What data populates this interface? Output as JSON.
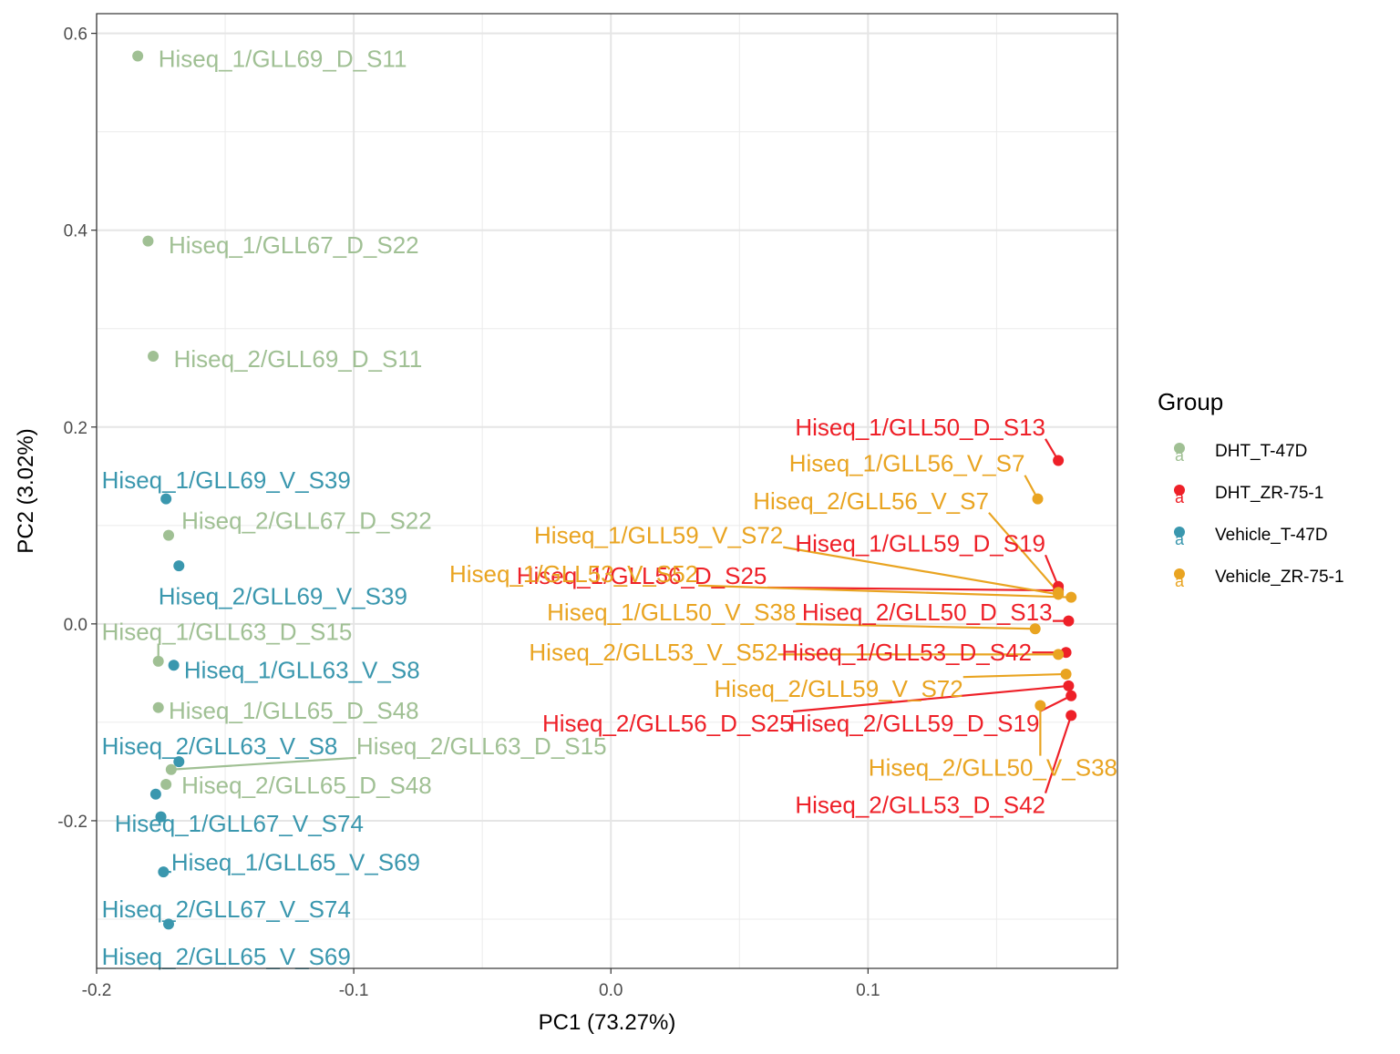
{
  "chart_data": {
    "type": "scatter",
    "title": "",
    "xlabel": "PC1 (73.27%)",
    "ylabel": "PC2 (3.02%)",
    "xlim": [
      -0.2,
      0.197
    ],
    "ylim": [
      -0.35,
      0.62
    ],
    "x_ticks": [
      -0.2,
      -0.1,
      0.0,
      0.1
    ],
    "x_tick_labels": [
      "-0.2",
      "-0.1",
      "0.0",
      "0.1"
    ],
    "y_ticks": [
      -0.2,
      0.0,
      0.2,
      0.4,
      0.6
    ],
    "y_tick_labels": [
      "-0.2",
      "0.0",
      "0.2",
      "0.4",
      "0.6"
    ],
    "grid": true,
    "legend": {
      "title": "Group",
      "placement": "right",
      "glyph": "a",
      "entries": [
        {
          "name": "DHT_T-47D",
          "color": "#a0c094"
        },
        {
          "name": "DHT_ZR-75-1",
          "color": "#ee2028"
        },
        {
          "name": "Vehicle_T-47D",
          "color": "#3a97ae"
        },
        {
          "name": "Vehicle_ZR-75-1",
          "color": "#e9a421"
        }
      ]
    },
    "series": [
      {
        "name": "DHT_T-47D",
        "color": "#a0c094",
        "points": [
          {
            "x": -0.184,
            "y": 0.577,
            "label": "Hiseq_1/GLL69_D_S11",
            "lx": -0.176,
            "ly": 0.574,
            "anchor": "start"
          },
          {
            "x": -0.18,
            "y": 0.389,
            "label": "Hiseq_1/GLL67_D_S22",
            "lx": -0.172,
            "ly": 0.385,
            "anchor": "start"
          },
          {
            "x": -0.178,
            "y": 0.272,
            "label": "Hiseq_2/GLL69_D_S11",
            "lx": -0.17,
            "ly": 0.269,
            "anchor": "start"
          },
          {
            "x": -0.172,
            "y": 0.09,
            "label": "Hiseq_2/GLL67_D_S22",
            "lx": -0.167,
            "ly": 0.105,
            "anchor": "start"
          },
          {
            "x": -0.176,
            "y": -0.038,
            "label": "Hiseq_1/GLL63_D_S15",
            "lx": -0.198,
            "ly": -0.008,
            "anchor": "start",
            "leader": true
          },
          {
            "x": -0.176,
            "y": -0.085,
            "label": "Hiseq_1/GLL65_D_S48",
            "lx": -0.172,
            "ly": -0.088,
            "anchor": "start"
          },
          {
            "x": -0.171,
            "y": -0.148,
            "label": "Hiseq_2/GLL63_D_S15",
            "lx": -0.099,
            "ly": -0.124,
            "anchor": "start",
            "leader": true
          },
          {
            "x": -0.173,
            "y": -0.163,
            "label": "Hiseq_2/GLL65_D_S48",
            "lx": -0.167,
            "ly": -0.164,
            "anchor": "start"
          }
        ]
      },
      {
        "name": "DHT_ZR-75-1",
        "color": "#ee2028",
        "points": [
          {
            "x": 0.174,
            "y": 0.166,
            "label": "Hiseq_1/GLL50_D_S13",
            "lx": 0.169,
            "ly": 0.2,
            "anchor": "end",
            "leader": true
          },
          {
            "x": 0.174,
            "y": 0.038,
            "label": "Hiseq_1/GLL59_D_S19",
            "lx": 0.169,
            "ly": 0.082,
            "anchor": "end",
            "leader": true
          },
          {
            "x": 0.174,
            "y": 0.034,
            "label": "Hiseq_1/GLL56_D_S25",
            "lx": 0.012,
            "ly": 0.049,
            "anchor": "middle",
            "leader": true
          },
          {
            "x": 0.178,
            "y": 0.003,
            "label": "Hiseq_2/GLL50_D_S13",
            "lx": 0.123,
            "ly": 0.012,
            "anchor": "middle",
            "leader": true
          },
          {
            "x": 0.177,
            "y": -0.029,
            "label": "Hiseq_1/GLL53_D_S42",
            "lx": 0.115,
            "ly": -0.029,
            "anchor": "middle",
            "leader": true
          },
          {
            "x": 0.178,
            "y": -0.063,
            "label": "Hiseq_2/GLL56_D_S25",
            "lx": 0.022,
            "ly": -0.101,
            "anchor": "middle",
            "leader": true
          },
          {
            "x": 0.179,
            "y": -0.073,
            "label": "Hiseq_2/GLL59_D_S19",
            "lx": 0.118,
            "ly": -0.101,
            "anchor": "middle",
            "leader": true
          },
          {
            "x": 0.179,
            "y": -0.093,
            "label": "Hiseq_2/GLL53_D_S42",
            "lx": 0.169,
            "ly": -0.184,
            "anchor": "end",
            "leader": true
          }
        ]
      },
      {
        "name": "Vehicle_T-47D",
        "color": "#3a97ae",
        "points": [
          {
            "x": -0.173,
            "y": 0.127,
            "label": "Hiseq_1/GLL69_V_S39",
            "lx": -0.198,
            "ly": 0.146,
            "anchor": "start"
          },
          {
            "x": -0.168,
            "y": 0.059,
            "label": "Hiseq_2/GLL69_V_S39",
            "lx": -0.176,
            "ly": 0.028,
            "anchor": "start"
          },
          {
            "x": -0.17,
            "y": -0.042,
            "label": "Hiseq_1/GLL63_V_S8",
            "lx": -0.166,
            "ly": -0.047,
            "anchor": "start"
          },
          {
            "x": -0.168,
            "y": -0.14,
            "label": "Hiseq_2/GLL63_V_S8",
            "lx": -0.198,
            "ly": -0.124,
            "anchor": "start",
            "leader": true
          },
          {
            "x": -0.177,
            "y": -0.173,
            "label": "Hiseq_2/GLL67_V_S74",
            "lx": -0.198,
            "ly": -0.29,
            "anchor": "start"
          },
          {
            "x": -0.175,
            "y": -0.196,
            "label": "Hiseq_1/GLL67_V_S74",
            "lx": -0.193,
            "ly": -0.203,
            "anchor": "start",
            "leader": true
          },
          {
            "x": -0.174,
            "y": -0.252,
            "label": "Hiseq_1/GLL65_V_S69",
            "lx": -0.171,
            "ly": -0.242,
            "anchor": "start",
            "leader": true
          },
          {
            "x": -0.172,
            "y": -0.305,
            "label": "Hiseq_2/GLL65_V_S69",
            "lx": -0.198,
            "ly": -0.338,
            "anchor": "start"
          }
        ]
      },
      {
        "name": "Vehicle_ZR-75-1",
        "color": "#e9a421",
        "points": [
          {
            "x": 0.166,
            "y": 0.127,
            "label": "Hiseq_1/GLL56_V_S7",
            "lx": 0.161,
            "ly": 0.163,
            "anchor": "end",
            "leader": true
          },
          {
            "x": 0.174,
            "y": 0.032,
            "label": "Hiseq_2/GLL56_V_S7",
            "lx": 0.147,
            "ly": 0.125,
            "anchor": "end",
            "leader": true
          },
          {
            "x": 0.174,
            "y": 0.03,
            "label": "Hiseq_1/GLL59_V_S72",
            "lx": 0.067,
            "ly": 0.09,
            "anchor": "end",
            "leader": true
          },
          {
            "x": 0.179,
            "y": 0.027,
            "label": "Hiseq_1/GLL53_V_S52",
            "lx": 0.034,
            "ly": 0.051,
            "anchor": "end",
            "leader": true
          },
          {
            "x": 0.165,
            "y": -0.005,
            "label": "Hiseq_1/GLL50_V_S38",
            "lx": 0.072,
            "ly": 0.012,
            "anchor": "end",
            "leader": true
          },
          {
            "x": 0.174,
            "y": -0.031,
            "label": "Hiseq_2/GLL53_V_S52",
            "lx": 0.065,
            "ly": -0.029,
            "anchor": "end",
            "leader": true
          },
          {
            "x": 0.177,
            "y": -0.051,
            "label": "Hiseq_2/GLL59_V_S72",
            "lx": 0.137,
            "ly": -0.066,
            "anchor": "end",
            "leader": true
          },
          {
            "x": 0.167,
            "y": -0.083,
            "label": "Hiseq_2/GLL50_V_S38",
            "lx": 0.197,
            "ly": -0.146,
            "anchor": "end",
            "leader": true
          }
        ]
      }
    ]
  }
}
